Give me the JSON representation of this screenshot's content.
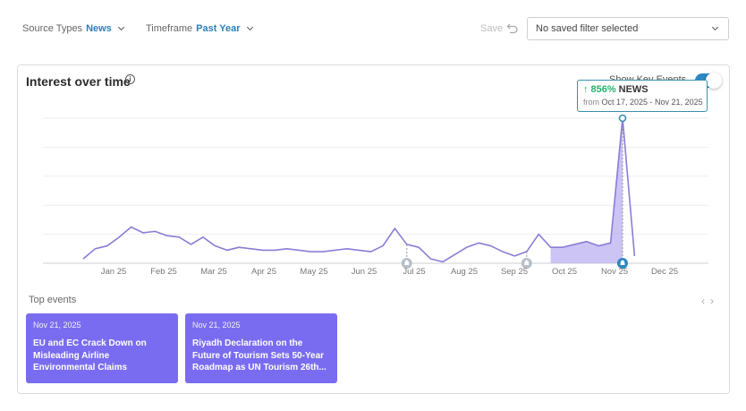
{
  "filters": {
    "source_label": "Source Types",
    "source_value": "News",
    "timeframe_label": "Timeframe",
    "timeframe_value": "Past Year"
  },
  "save_label": "Save",
  "saved_filter": "No saved filter selected",
  "card": {
    "title": "Interest over time",
    "key_events_label": "Show Key Events",
    "key_events_enabled": true
  },
  "tooltip": {
    "percent": "856%",
    "source": "NEWS",
    "from_label": "from",
    "range": "Oct 17, 2025 - Nov 21, 2025"
  },
  "chart_data": {
    "type": "line",
    "x_ticks": [
      "Jan 25",
      "Feb 25",
      "Mar 25",
      "Apr 25",
      "May 25",
      "Jun 25",
      "Jul 25",
      "Aug 25",
      "Sep 25",
      "Oct 25",
      "Nov 25",
      "Dec 25"
    ],
    "values": [
      3,
      10,
      12,
      18,
      25,
      21,
      22,
      19,
      18,
      13,
      18,
      12,
      9,
      11,
      10,
      9,
      9,
      10,
      9,
      8,
      8,
      9,
      10,
      9,
      8,
      12,
      24,
      13,
      11,
      3,
      1,
      6,
      11,
      14,
      12,
      8,
      5,
      8,
      20,
      11,
      11,
      13,
      15,
      12,
      14,
      100,
      5
    ],
    "highlight_start_index": 39,
    "peak_index": 45,
    "event_marker_indices": [
      27,
      37,
      45
    ],
    "ylim": [
      0,
      100
    ],
    "grid": true,
    "line_color": "#8a7dd6",
    "highlight_color": "#b9b0f2",
    "event_color": "#2d87c0"
  },
  "top_events": {
    "label": "Top events",
    "items": [
      {
        "date": "Nov 21, 2025",
        "title": "EU and EC Crack Down on Misleading Airline Environmental Claims"
      },
      {
        "date": "Nov 21, 2025",
        "title": "Riyadh Declaration on the Future of Tourism Sets 50-Year Roadmap as UN Tourism 26th..."
      }
    ]
  }
}
